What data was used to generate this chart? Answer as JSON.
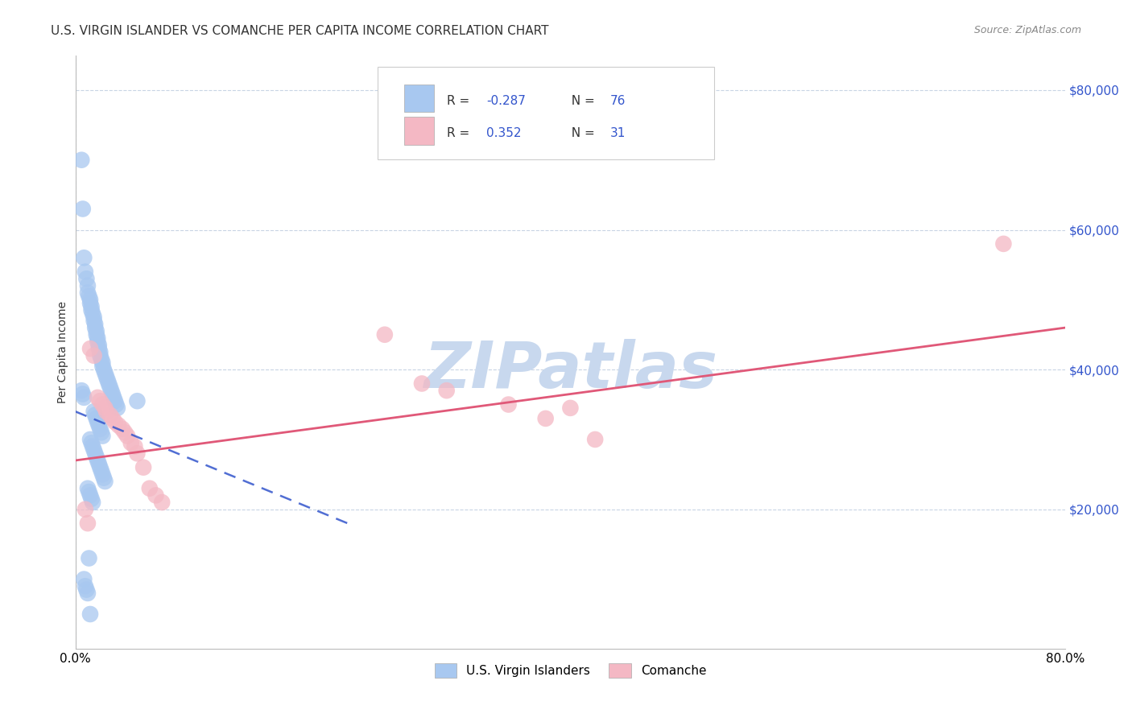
{
  "title": "U.S. VIRGIN ISLANDER VS COMANCHE PER CAPITA INCOME CORRELATION CHART",
  "source": "Source: ZipAtlas.com",
  "ylabel": "Per Capita Income",
  "xlim": [
    0.0,
    0.8
  ],
  "ylim": [
    0,
    85000
  ],
  "blue_R": -0.287,
  "blue_N": 76,
  "pink_R": 0.352,
  "pink_N": 31,
  "blue_color": "#a8c8f0",
  "pink_color": "#f4b8c4",
  "blue_line_color": "#3355cc",
  "pink_line_color": "#e05878",
  "blue_scatter_x": [
    0.005,
    0.006,
    0.007,
    0.008,
    0.009,
    0.01,
    0.01,
    0.011,
    0.012,
    0.012,
    0.013,
    0.013,
    0.014,
    0.015,
    0.015,
    0.016,
    0.016,
    0.017,
    0.017,
    0.018,
    0.018,
    0.019,
    0.019,
    0.02,
    0.02,
    0.021,
    0.022,
    0.022,
    0.023,
    0.024,
    0.025,
    0.026,
    0.027,
    0.028,
    0.029,
    0.03,
    0.031,
    0.032,
    0.033,
    0.034,
    0.015,
    0.016,
    0.017,
    0.018,
    0.019,
    0.02,
    0.021,
    0.022,
    0.012,
    0.013,
    0.014,
    0.015,
    0.016,
    0.017,
    0.018,
    0.019,
    0.02,
    0.021,
    0.022,
    0.023,
    0.024,
    0.01,
    0.011,
    0.012,
    0.013,
    0.014,
    0.005,
    0.006,
    0.007,
    0.05,
    0.007,
    0.008,
    0.009,
    0.01,
    0.011,
    0.012
  ],
  "blue_scatter_y": [
    70000,
    63000,
    56000,
    54000,
    53000,
    52000,
    51000,
    50500,
    50000,
    49500,
    49000,
    48500,
    48000,
    47500,
    47000,
    46500,
    46000,
    45500,
    45000,
    44500,
    44000,
    43500,
    43000,
    42500,
    42000,
    41500,
    41000,
    40500,
    40000,
    39500,
    39000,
    38500,
    38000,
    37500,
    37000,
    36500,
    36000,
    35500,
    35000,
    34500,
    34000,
    33500,
    33000,
    32500,
    32000,
    31500,
    31000,
    30500,
    30000,
    29500,
    29000,
    28500,
    28000,
    27500,
    27000,
    26500,
    26000,
    25500,
    25000,
    24500,
    24000,
    23000,
    22500,
    22000,
    21500,
    21000,
    37000,
    36500,
    36000,
    35500,
    10000,
    9000,
    8500,
    8000,
    13000,
    5000
  ],
  "pink_scatter_x": [
    0.008,
    0.01,
    0.012,
    0.015,
    0.018,
    0.02,
    0.022,
    0.024,
    0.025,
    0.028,
    0.03,
    0.032,
    0.035,
    0.038,
    0.04,
    0.042,
    0.045,
    0.048,
    0.05,
    0.055,
    0.06,
    0.065,
    0.07,
    0.25,
    0.28,
    0.3,
    0.35,
    0.4,
    0.38,
    0.42,
    0.75
  ],
  "pink_scatter_y": [
    20000,
    18000,
    43000,
    42000,
    36000,
    35500,
    35000,
    34500,
    34000,
    33500,
    33000,
    32500,
    32000,
    31500,
    31000,
    30500,
    29500,
    29000,
    28000,
    26000,
    23000,
    22000,
    21000,
    45000,
    38000,
    37000,
    35000,
    34500,
    33000,
    30000,
    58000
  ],
  "watermark": "ZIPatlas",
  "watermark_color": "#c8d8ee",
  "background_color": "#ffffff",
  "grid_color": "#c8d4e4",
  "title_fontsize": 11,
  "axis_label_fontsize": 10,
  "tick_fontsize": 11,
  "legend_text_color": "#333333",
  "legend_value_color": "#3355cc"
}
